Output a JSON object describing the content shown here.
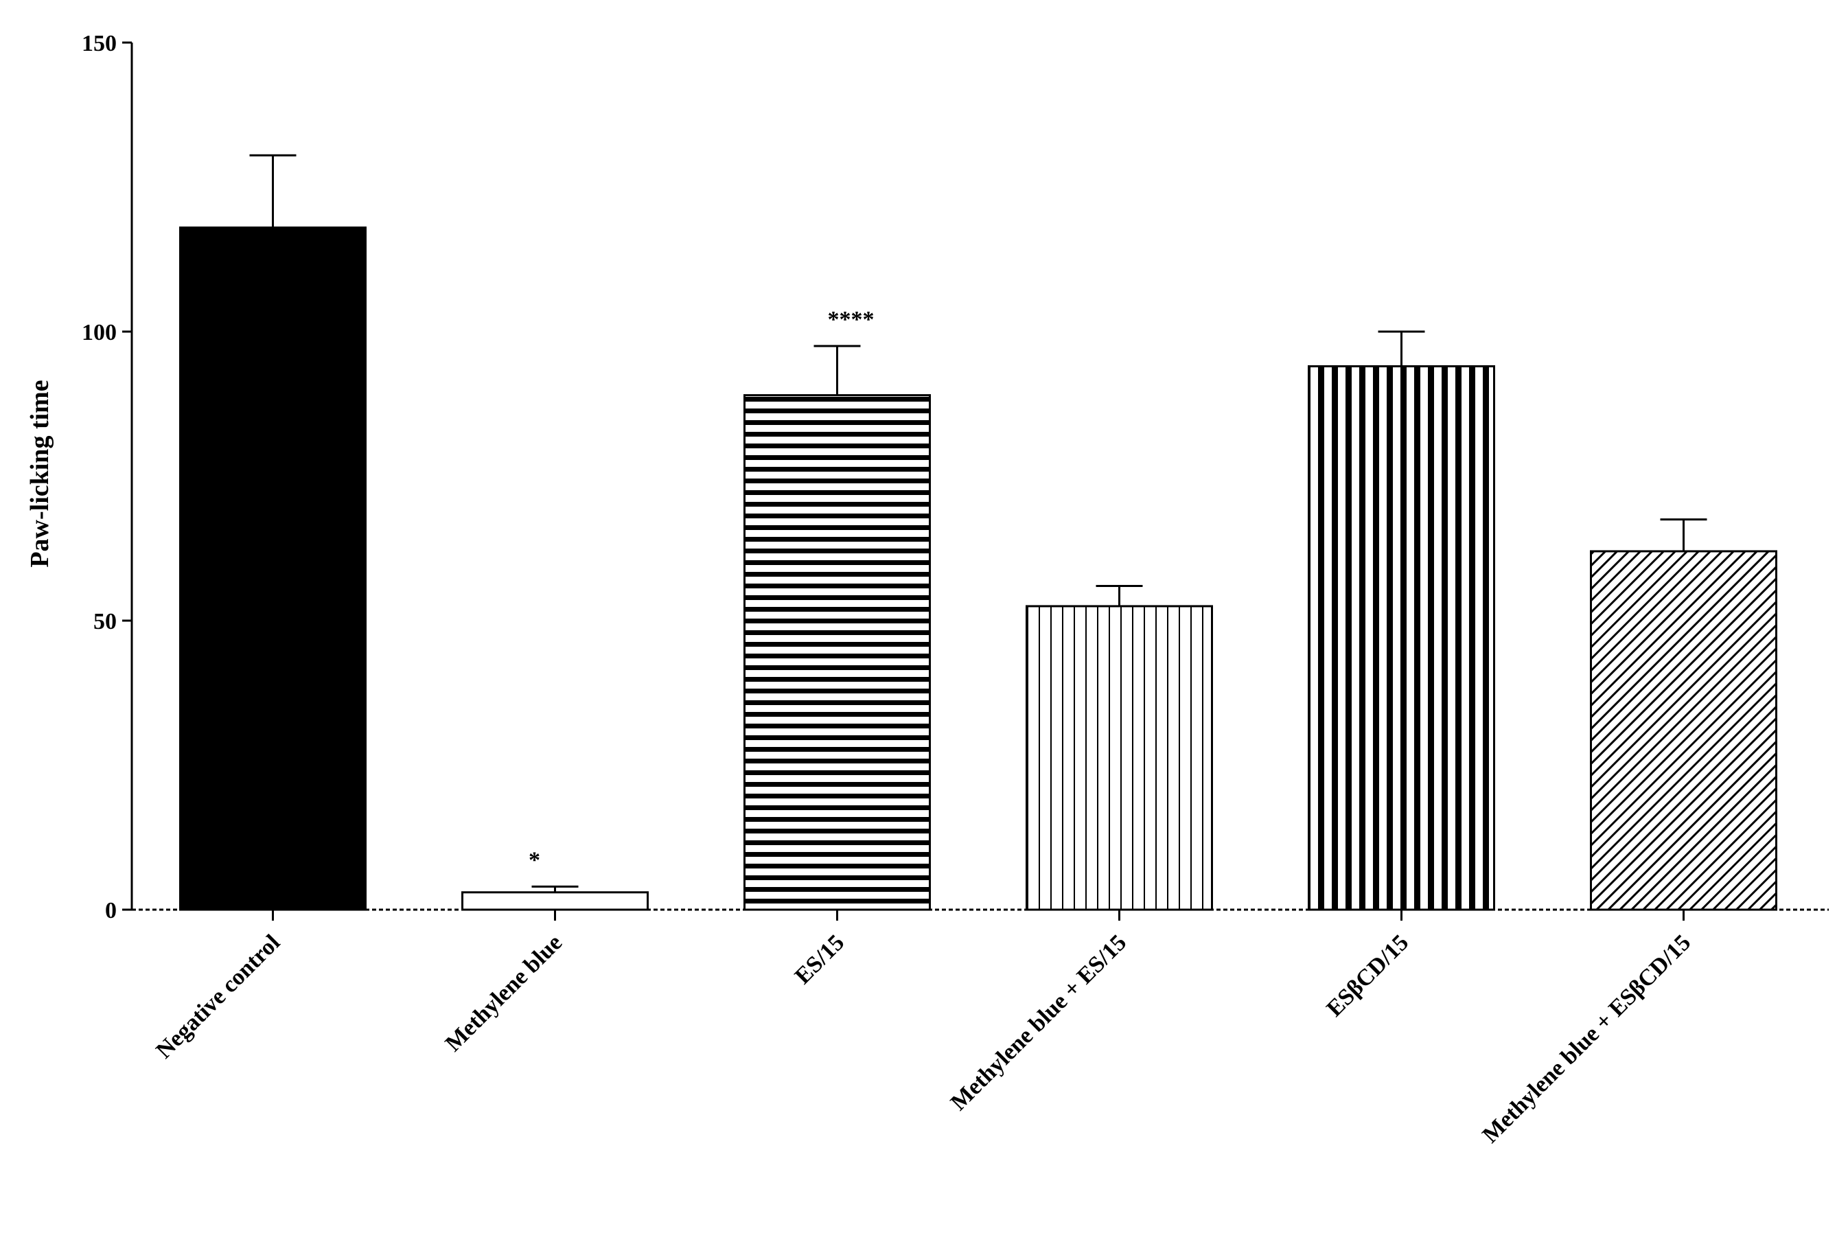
{
  "chart_data": {
    "type": "bar",
    "title": "",
    "xlabel": "",
    "ylabel": "Paw-licking time",
    "ylim": [
      0,
      150
    ],
    "yticks": [
      0,
      50,
      100,
      150
    ],
    "ytick_labels": [
      "0",
      "50",
      "100",
      "150"
    ],
    "grid": false,
    "legend": "none",
    "categories": [
      "Negative control",
      "Methylene blue",
      "ES/15",
      "Methylene blue + ES/15",
      "ESβCD/15",
      "Methylene blue + ESβCD/15"
    ],
    "values": [
      118,
      3,
      89,
      52.5,
      94,
      62
    ],
    "errors": [
      12.5,
      1,
      8.5,
      3.5,
      6,
      5.5
    ],
    "patterns": [
      "solid",
      "empty",
      "horizontal-lines",
      "vertical-lines-thin",
      "vertical-lines-thick",
      "diagonal-lines"
    ],
    "annotations": [
      "",
      "*",
      "****",
      "",
      "",
      ""
    ],
    "colors": {
      "bar_fill": "#000000",
      "background": "#ffffff",
      "stroke": "#000000"
    }
  }
}
